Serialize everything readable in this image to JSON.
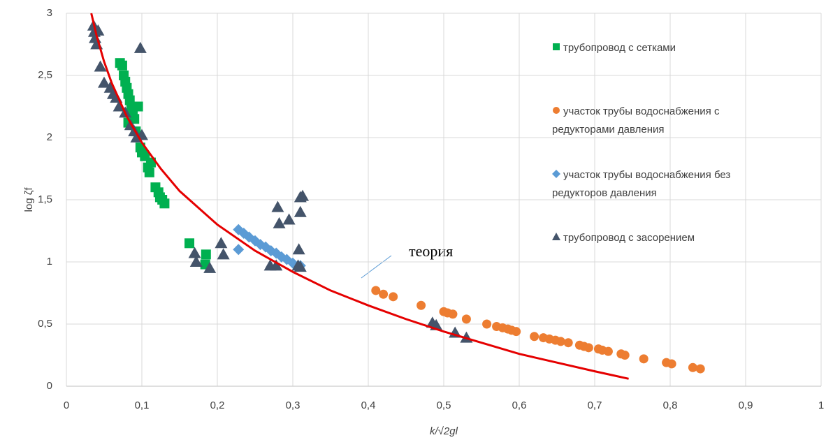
{
  "chart_data": {
    "type": "scatter",
    "ylabel": "log ζf",
    "xlabel": "k/√2gl",
    "xlim": [
      0,
      1
    ],
    "ylim": [
      0,
      3
    ],
    "xticks": [
      0,
      {
        "value": 0.1,
        "label": "0,1"
      },
      {
        "value": 0.2,
        "label": "0,2"
      },
      {
        "value": 0.3,
        "label": "0,3"
      },
      {
        "value": 0.4,
        "label": "0,4"
      },
      {
        "value": 0.5,
        "label": "0,5"
      },
      {
        "value": 0.6,
        "label": "0,6"
      },
      {
        "value": 0.7,
        "label": "0,7"
      },
      {
        "value": 0.8,
        "label": "0,8"
      },
      {
        "value": 0.9,
        "label": "0,9"
      },
      1
    ],
    "yticks": [
      0,
      {
        "value": 0.5,
        "label": "0,5"
      },
      1,
      {
        "value": 1.5,
        "label": "1,5"
      },
      2,
      {
        "value": 2.5,
        "label": "2,5"
      },
      3
    ],
    "grid": true,
    "legend": "right",
    "series": [
      {
        "name": "трубопровод с сетками",
        "color": "#00b050",
        "marker": "square",
        "x": [
          0.071,
          0.074,
          0.076,
          0.078,
          0.08,
          0.082,
          0.084,
          0.086,
          0.088,
          0.082,
          0.09,
          0.095,
          0.092,
          0.098,
          0.1,
          0.104,
          0.108,
          0.11,
          0.112,
          0.118,
          0.122,
          0.124,
          0.127,
          0.13,
          0.163,
          0.185,
          0.184
        ],
        "values": [
          2.6,
          2.58,
          2.5,
          2.45,
          2.4,
          2.35,
          2.3,
          2.25,
          2.2,
          2.12,
          2.15,
          2.25,
          2.05,
          1.92,
          1.88,
          1.85,
          1.76,
          1.72,
          1.8,
          1.6,
          1.56,
          1.52,
          1.5,
          1.47,
          1.15,
          1.06,
          0.98
        ]
      },
      {
        "name": "участок трубы водоснабжения с редукторами давления",
        "color": "#ed7d31",
        "marker": "circle",
        "x": [
          0.41,
          0.42,
          0.433,
          0.47,
          0.5,
          0.505,
          0.512,
          0.53,
          0.557,
          0.57,
          0.578,
          0.585,
          0.59,
          0.596,
          0.62,
          0.632,
          0.64,
          0.648,
          0.655,
          0.665,
          0.68,
          0.686,
          0.692,
          0.705,
          0.71,
          0.718,
          0.735,
          0.74,
          0.765,
          0.795,
          0.802,
          0.83,
          0.84
        ],
        "values": [
          0.77,
          0.74,
          0.72,
          0.65,
          0.6,
          0.59,
          0.58,
          0.54,
          0.5,
          0.48,
          0.47,
          0.46,
          0.45,
          0.44,
          0.4,
          0.39,
          0.38,
          0.37,
          0.36,
          0.35,
          0.33,
          0.32,
          0.31,
          0.3,
          0.29,
          0.28,
          0.26,
          0.25,
          0.22,
          0.19,
          0.18,
          0.15,
          0.14
        ]
      },
      {
        "name": "участок трубы водоснабжения  без редукторов давления",
        "color": "#5b9bd5",
        "marker": "diamond",
        "x": [
          0.228,
          0.235,
          0.242,
          0.25,
          0.257,
          0.264,
          0.271,
          0.278,
          0.285,
          0.292,
          0.3,
          0.31,
          0.228
        ],
        "values": [
          1.26,
          1.23,
          1.2,
          1.17,
          1.14,
          1.12,
          1.09,
          1.07,
          1.04,
          1.02,
          0.99,
          0.97,
          1.1
        ]
      },
      {
        "name": "трубопровод с засорением",
        "color": "#44546a",
        "marker": "triangle",
        "x": [
          0.036,
          0.037,
          0.038,
          0.04,
          0.042,
          0.045,
          0.05,
          0.058,
          0.062,
          0.066,
          0.07,
          0.078,
          0.085,
          0.09,
          0.093,
          0.1,
          0.098,
          0.17,
          0.172,
          0.19,
          0.205,
          0.208,
          0.27,
          0.278,
          0.28,
          0.282,
          0.295,
          0.31,
          0.313,
          0.31,
          0.308,
          0.307,
          0.31,
          0.485,
          0.49,
          0.515,
          0.53
        ],
        "values": [
          2.9,
          2.85,
          2.8,
          2.75,
          2.86,
          2.57,
          2.44,
          2.4,
          2.35,
          2.32,
          2.25,
          2.2,
          2.1,
          2.05,
          2.0,
          2.02,
          2.72,
          1.07,
          1.0,
          0.95,
          1.15,
          1.06,
          0.97,
          0.97,
          1.44,
          1.31,
          1.34,
          1.52,
          1.53,
          1.4,
          1.1,
          0.97,
          0.96,
          0.51,
          0.49,
          0.43,
          0.39
        ]
      }
    ],
    "curve": {
      "color": "#e50000",
      "x": [
        0.033,
        0.04,
        0.05,
        0.06,
        0.08,
        0.1,
        0.125,
        0.15,
        0.2,
        0.25,
        0.3,
        0.35,
        0.4,
        0.45,
        0.5,
        0.55,
        0.6,
        0.65,
        0.7,
        0.745
      ],
      "values": [
        3.0,
        2.82,
        2.61,
        2.44,
        2.17,
        1.96,
        1.75,
        1.57,
        1.3,
        1.09,
        0.92,
        0.77,
        0.65,
        0.54,
        0.44,
        0.35,
        0.26,
        0.19,
        0.12,
        0.06
      ]
    },
    "annotation": "теория"
  }
}
